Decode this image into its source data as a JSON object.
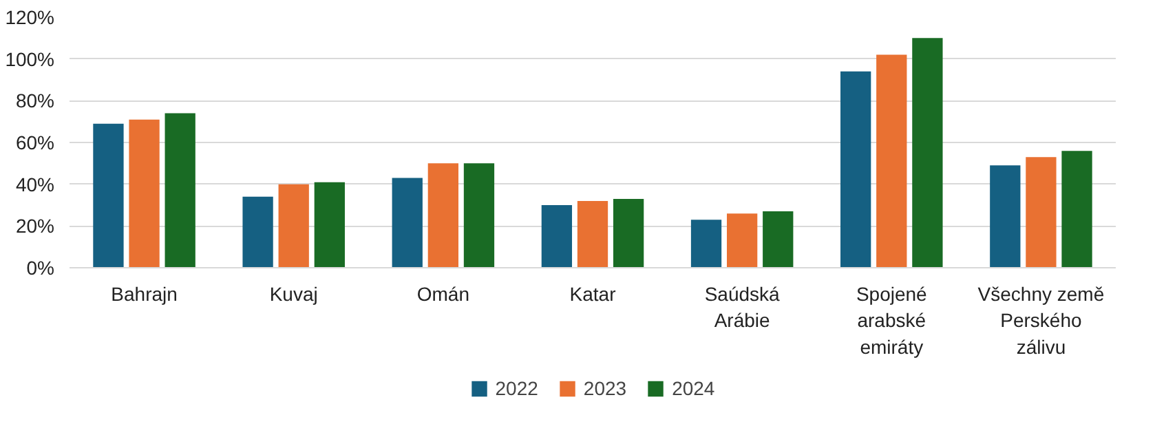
{
  "chart_data": {
    "type": "bar",
    "categories": [
      "Bahrajn",
      "Kuvaj",
      "Omán",
      "Katar",
      "Saúdská Arábie",
      "Spojené arabské emiráty",
      "Všechny země Perského zálivu"
    ],
    "series": [
      {
        "name": "2022",
        "color": "#156082",
        "values": [
          69,
          34,
          43,
          30,
          23,
          94,
          49
        ]
      },
      {
        "name": "2023",
        "color": "#e97132",
        "values": [
          71,
          40,
          50,
          32,
          26,
          102,
          53
        ]
      },
      {
        "name": "2024",
        "color": "#196b24",
        "values": [
          74,
          41,
          50,
          33,
          27,
          110,
          56
        ]
      }
    ],
    "ylim": [
      0,
      120
    ],
    "yticks": [
      {
        "value": 0,
        "label": "0%"
      },
      {
        "value": 20,
        "label": "20%"
      },
      {
        "value": 40,
        "label": "40%"
      },
      {
        "value": 60,
        "label": "60%"
      },
      {
        "value": 80,
        "label": "80%"
      },
      {
        "value": 100,
        "label": "100%"
      },
      {
        "value": 120,
        "label": "120%"
      }
    ],
    "grid": "y",
    "legend": "bottom"
  }
}
